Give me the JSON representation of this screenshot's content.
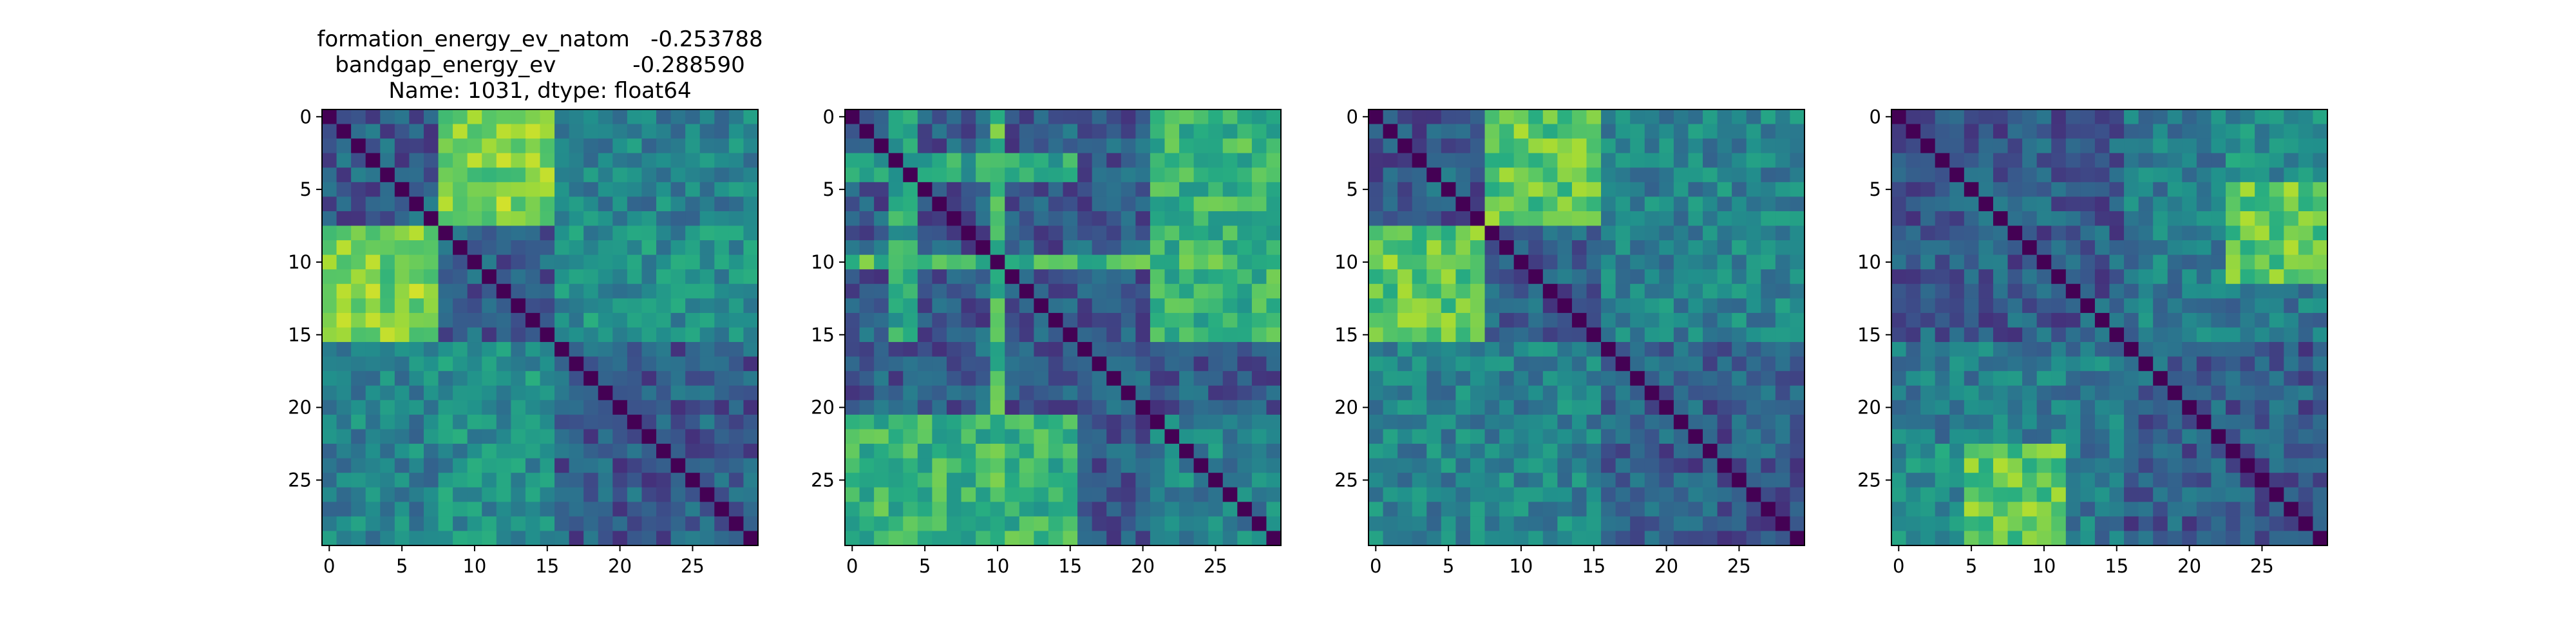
{
  "title_lines": [
    "formation_energy_ev_natom   -0.253788",
    "bandgap_energy_ev           -0.288590",
    "Name: 1031, dtype: float64"
  ],
  "chart_data": [
    {
      "type": "heatmap",
      "colormap": "viridis",
      "n": 30,
      "x_ticks": [
        0,
        5,
        10,
        15,
        20,
        25
      ],
      "y_ticks": [
        0,
        5,
        10,
        15,
        20,
        25
      ],
      "xlim": [
        -0.5,
        29.5
      ],
      "ylim": [
        29.5,
        -0.5
      ],
      "blocks": [
        {
          "rows": [
            0,
            7
          ],
          "cols": [
            8,
            15
          ],
          "value": 0.75
        },
        {
          "rows": [
            0,
            7
          ],
          "cols": [
            16,
            29
          ],
          "value": 0.45
        },
        {
          "rows": [
            8,
            15
          ],
          "cols": [
            0,
            7
          ],
          "value": 0.8
        },
        {
          "rows": [
            8,
            15
          ],
          "cols": [
            16,
            29
          ],
          "value": 0.45
        },
        {
          "rows": [
            16,
            29
          ],
          "cols": [
            0,
            7
          ],
          "value": 0.45
        },
        {
          "rows": [
            16,
            29
          ],
          "cols": [
            8,
            15
          ],
          "value": 0.5
        }
      ],
      "base_value": 0.3,
      "diagonal_value": 0.0,
      "seed": 11
    },
    {
      "type": "heatmap",
      "colormap": "viridis",
      "n": 30,
      "x_ticks": [
        0,
        5,
        10,
        15,
        20,
        25
      ],
      "y_ticks": [
        0,
        5,
        10,
        15,
        20,
        25
      ],
      "xlim": [
        -0.5,
        29.5
      ],
      "ylim": [
        29.5,
        -0.5
      ],
      "blocks": [
        {
          "rows": [
            21,
            29
          ],
          "cols": [
            0,
            15
          ],
          "value": 0.65
        },
        {
          "rows": [
            0,
            15
          ],
          "cols": [
            21,
            29
          ],
          "value": 0.6
        },
        {
          "rows": [
            21,
            29
          ],
          "cols": [
            21,
            29
          ],
          "value": 0.45
        },
        {
          "rows": [
            3,
            4
          ],
          "cols": [
            0,
            15
          ],
          "value": 0.6
        },
        {
          "rows": [
            0,
            15
          ],
          "cols": [
            3,
            4
          ],
          "value": 0.6
        },
        {
          "rows": [
            10,
            10
          ],
          "cols": [
            0,
            29
          ],
          "value": 0.7
        },
        {
          "rows": [
            0,
            29
          ],
          "cols": [
            10,
            10
          ],
          "value": 0.65
        }
      ],
      "base_value": 0.3,
      "diagonal_value": 0.0,
      "seed": 23
    },
    {
      "type": "heatmap",
      "colormap": "viridis",
      "n": 30,
      "x_ticks": [
        0,
        5,
        10,
        15,
        20,
        25
      ],
      "y_ticks": [
        0,
        5,
        10,
        15,
        20,
        25
      ],
      "xlim": [
        -0.5,
        29.5
      ],
      "ylim": [
        29.5,
        -0.5
      ],
      "blocks": [
        {
          "rows": [
            0,
            7
          ],
          "cols": [
            8,
            15
          ],
          "value": 0.75
        },
        {
          "rows": [
            8,
            15
          ],
          "cols": [
            0,
            7
          ],
          "value": 0.75
        },
        {
          "rows": [
            16,
            29
          ],
          "cols": [
            0,
            15
          ],
          "value": 0.45
        },
        {
          "rows": [
            0,
            15
          ],
          "cols": [
            16,
            29
          ],
          "value": 0.42
        }
      ],
      "base_value": 0.3,
      "diagonal_value": 0.0,
      "seed": 37
    },
    {
      "type": "heatmap",
      "colormap": "viridis",
      "n": 30,
      "x_ticks": [
        0,
        5,
        10,
        15,
        20,
        25
      ],
      "y_ticks": [
        0,
        5,
        10,
        15,
        20,
        25
      ],
      "xlim": [
        -0.5,
        29.5
      ],
      "ylim": [
        29.5,
        -0.5
      ],
      "blocks": [
        {
          "rows": [
            23,
            29
          ],
          "cols": [
            5,
            11
          ],
          "value": 0.75
        },
        {
          "rows": [
            5,
            11
          ],
          "cols": [
            23,
            29
          ],
          "value": 0.75
        },
        {
          "rows": [
            23,
            29
          ],
          "cols": [
            0,
            4
          ],
          "value": 0.5
        },
        {
          "rows": [
            16,
            22
          ],
          "cols": [
            0,
            15
          ],
          "value": 0.42
        },
        {
          "rows": [
            0,
            15
          ],
          "cols": [
            16,
            29
          ],
          "value": 0.42
        }
      ],
      "base_value": 0.3,
      "diagonal_value": 0.0,
      "seed": 53
    }
  ]
}
